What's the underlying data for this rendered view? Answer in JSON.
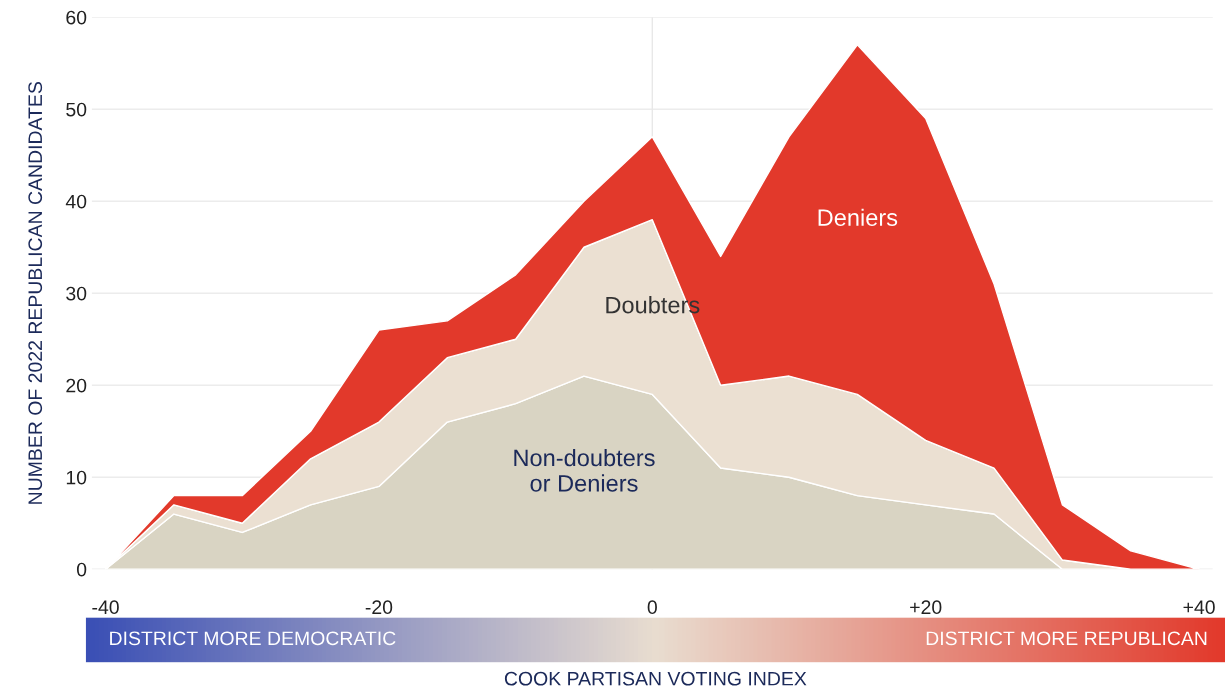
{
  "chart_data": {
    "type": "area",
    "stacked": true,
    "xlabel": "COOK PARTISAN VOTING INDEX",
    "ylabel": "NUMBER OF 2022 REPUBLICAN CANDIDATES",
    "x": [
      -40,
      -35,
      -30,
      -25,
      -20,
      -15,
      -10,
      -5,
      0,
      5,
      10,
      15,
      20,
      25,
      30,
      35,
      40
    ],
    "series": [
      {
        "name": "Non-doubters\nor Deniers",
        "color": "#d9d4c3",
        "values": [
          0,
          6,
          4,
          7,
          9,
          16,
          18,
          21,
          19,
          11,
          10,
          8,
          7,
          6,
          0,
          0,
          0
        ]
      },
      {
        "name": "Doubters",
        "color": "#ebe0d2",
        "values": [
          0,
          1,
          1,
          5,
          7,
          7,
          7,
          14,
          19,
          9,
          11,
          11,
          7,
          5,
          1,
          0,
          0
        ]
      },
      {
        "name": "Deniers",
        "color": "#e2392b",
        "values": [
          0,
          1,
          3,
          3,
          10,
          4,
          7,
          5,
          9,
          14,
          26,
          38,
          35,
          20,
          6,
          2,
          0
        ]
      }
    ],
    "xlim": [
      -41,
      41
    ],
    "ylim": [
      0,
      60
    ],
    "xticks": [
      {
        "value": -40,
        "label": "-40"
      },
      {
        "value": -20,
        "label": "-20"
      },
      0,
      {
        "value": 20,
        "label": "+20"
      },
      {
        "value": 40,
        "label": "+40"
      }
    ],
    "yticks": [
      0,
      10,
      20,
      30,
      40,
      50,
      60
    ],
    "grid": "y",
    "legend": false,
    "ref_lines": [
      {
        "axis": "x",
        "value": 0,
        "color": "#e8e8e8"
      }
    ],
    "annotations": [
      "DISTRICT MORE DEMOCRATIC",
      "DISTRICT MORE REPUBLICAN"
    ]
  }
}
